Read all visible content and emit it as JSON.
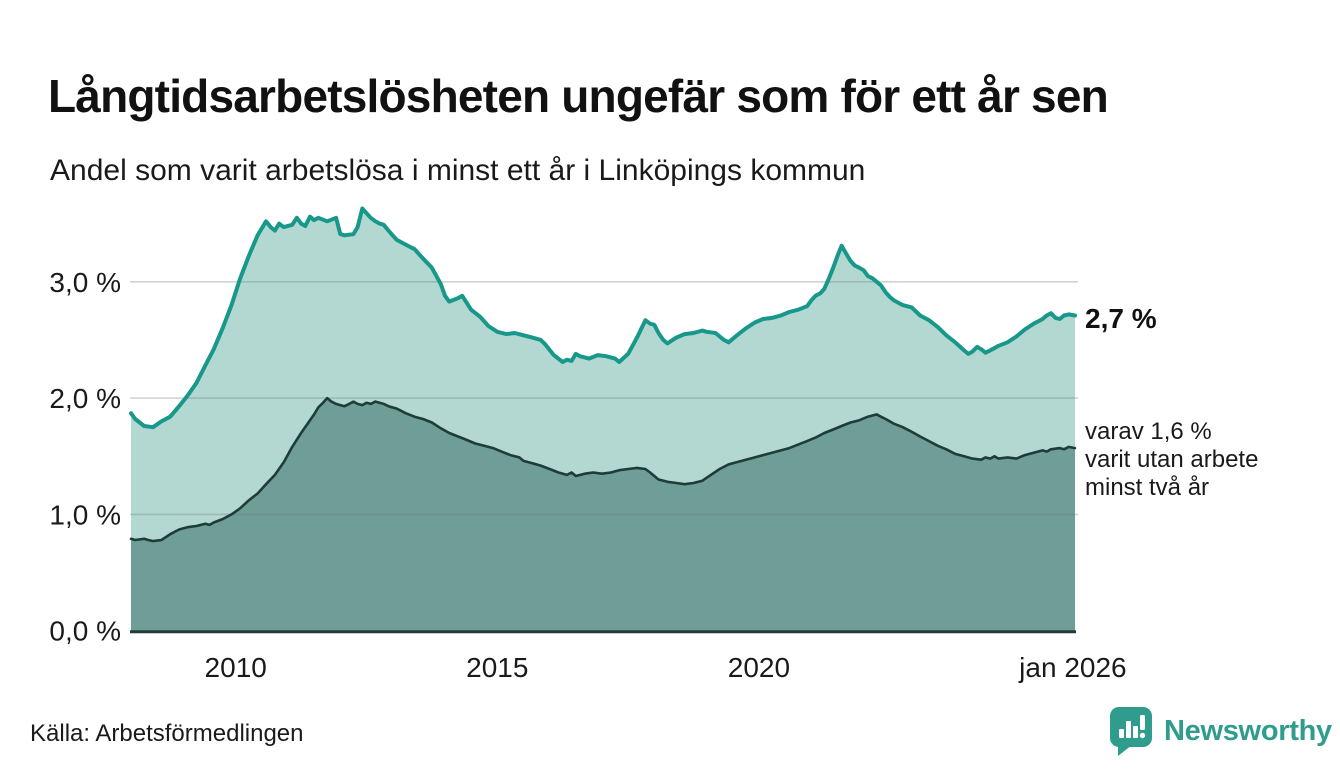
{
  "header": {
    "title": "Långtidsarbetslösheten ungefär som för ett år sen",
    "subtitle": "Andel som varit arbetslösa i minst ett år i Linköpings kommun"
  },
  "footer": {
    "source": "Källa: Arbetsförmedlingen",
    "logo_text": "Newsworthy"
  },
  "colors": {
    "total_line": "#17988a",
    "total_fill": "#b3d8d2",
    "two_year_line": "#1e3d38",
    "two_year_fill": "#6f9e98",
    "grid_overlay": "rgba(100,115,112,0.30)",
    "axis_line": "#1e3d38",
    "logo_teal": "#2f9c8d",
    "text": "#1a1a1a"
  },
  "chart_data": {
    "type": "area",
    "title": "Långtidsarbetslösheten ungefär som för ett år sen",
    "subtitle": "Andel som varit arbetslösa i minst ett år i Linköpings kommun",
    "x_axis": {
      "range": [
        2008.0,
        2026.04
      ],
      "ticks": [
        {
          "year": 2010,
          "label": "2010"
        },
        {
          "year": 2015,
          "label": "2015"
        },
        {
          "year": 2020,
          "label": "2020"
        },
        {
          "year": 2026.0,
          "label": "jan 2026"
        }
      ]
    },
    "y_axis": {
      "unit": "%",
      "range": [
        0,
        3.8
      ],
      "grid": true,
      "ticks": [
        {
          "value": 3.0,
          "label": "3,0 %"
        },
        {
          "value": 2.0,
          "label": "2,0 %"
        },
        {
          "value": 1.0,
          "label": "1,0 %"
        },
        {
          "value": 0.0,
          "label": "0,0 %"
        }
      ]
    },
    "annotations": {
      "end_value_total": "2,7 %",
      "end_sub_lines": [
        "varav 1,6 %",
        "varit utan arbete",
        "minst två år"
      ]
    },
    "series": [
      {
        "id": "arbetslosa-minst-ett-ar",
        "end_value": 2.7,
        "points": [
          [
            2008.0,
            1.87
          ],
          [
            2008.08,
            1.82
          ],
          [
            2008.25,
            1.76
          ],
          [
            2008.42,
            1.75
          ],
          [
            2008.58,
            1.8
          ],
          [
            2008.75,
            1.84
          ],
          [
            2008.92,
            1.93
          ],
          [
            2009.08,
            2.02
          ],
          [
            2009.25,
            2.13
          ],
          [
            2009.42,
            2.28
          ],
          [
            2009.58,
            2.42
          ],
          [
            2009.75,
            2.6
          ],
          [
            2009.92,
            2.8
          ],
          [
            2010.08,
            3.02
          ],
          [
            2010.25,
            3.22
          ],
          [
            2010.42,
            3.4
          ],
          [
            2010.58,
            3.52
          ],
          [
            2010.67,
            3.47
          ],
          [
            2010.75,
            3.44
          ],
          [
            2010.83,
            3.5
          ],
          [
            2010.92,
            3.47
          ],
          [
            2011.08,
            3.49
          ],
          [
            2011.17,
            3.55
          ],
          [
            2011.25,
            3.5
          ],
          [
            2011.33,
            3.48
          ],
          [
            2011.42,
            3.56
          ],
          [
            2011.5,
            3.53
          ],
          [
            2011.58,
            3.55
          ],
          [
            2011.75,
            3.52
          ],
          [
            2011.92,
            3.55
          ],
          [
            2012.0,
            3.41
          ],
          [
            2012.08,
            3.4
          ],
          [
            2012.25,
            3.41
          ],
          [
            2012.33,
            3.47
          ],
          [
            2012.42,
            3.63
          ],
          [
            2012.5,
            3.59
          ],
          [
            2012.58,
            3.55
          ],
          [
            2012.67,
            3.52
          ],
          [
            2012.75,
            3.5
          ],
          [
            2012.83,
            3.49
          ],
          [
            2012.92,
            3.44
          ],
          [
            2013.0,
            3.4
          ],
          [
            2013.08,
            3.36
          ],
          [
            2013.25,
            3.32
          ],
          [
            2013.42,
            3.28
          ],
          [
            2013.58,
            3.2
          ],
          [
            2013.75,
            3.12
          ],
          [
            2013.92,
            2.98
          ],
          [
            2014.0,
            2.88
          ],
          [
            2014.08,
            2.83
          ],
          [
            2014.25,
            2.86
          ],
          [
            2014.33,
            2.88
          ],
          [
            2014.5,
            2.76
          ],
          [
            2014.67,
            2.7
          ],
          [
            2014.83,
            2.62
          ],
          [
            2015.0,
            2.57
          ],
          [
            2015.17,
            2.55
          ],
          [
            2015.33,
            2.56
          ],
          [
            2015.5,
            2.54
          ],
          [
            2015.67,
            2.52
          ],
          [
            2015.83,
            2.5
          ],
          [
            2015.92,
            2.46
          ],
          [
            2016.08,
            2.37
          ],
          [
            2016.25,
            2.31
          ],
          [
            2016.33,
            2.33
          ],
          [
            2016.42,
            2.32
          ],
          [
            2016.5,
            2.38
          ],
          [
            2016.58,
            2.36
          ],
          [
            2016.75,
            2.34
          ],
          [
            2016.92,
            2.37
          ],
          [
            2017.08,
            2.36
          ],
          [
            2017.25,
            2.34
          ],
          [
            2017.33,
            2.31
          ],
          [
            2017.5,
            2.38
          ],
          [
            2017.67,
            2.52
          ],
          [
            2017.83,
            2.67
          ],
          [
            2017.92,
            2.64
          ],
          [
            2018.0,
            2.63
          ],
          [
            2018.08,
            2.56
          ],
          [
            2018.17,
            2.5
          ],
          [
            2018.25,
            2.47
          ],
          [
            2018.42,
            2.52
          ],
          [
            2018.58,
            2.55
          ],
          [
            2018.75,
            2.56
          ],
          [
            2018.92,
            2.58
          ],
          [
            2019.0,
            2.57
          ],
          [
            2019.17,
            2.56
          ],
          [
            2019.33,
            2.5
          ],
          [
            2019.42,
            2.48
          ],
          [
            2019.58,
            2.54
          ],
          [
            2019.75,
            2.6
          ],
          [
            2019.92,
            2.65
          ],
          [
            2020.08,
            2.68
          ],
          [
            2020.25,
            2.69
          ],
          [
            2020.42,
            2.71
          ],
          [
            2020.58,
            2.74
          ],
          [
            2020.75,
            2.76
          ],
          [
            2020.92,
            2.79
          ],
          [
            2021.0,
            2.84
          ],
          [
            2021.08,
            2.88
          ],
          [
            2021.17,
            2.9
          ],
          [
            2021.25,
            2.94
          ],
          [
            2021.33,
            3.02
          ],
          [
            2021.42,
            3.12
          ],
          [
            2021.5,
            3.22
          ],
          [
            2021.58,
            3.31
          ],
          [
            2021.67,
            3.24
          ],
          [
            2021.75,
            3.18
          ],
          [
            2021.83,
            3.14
          ],
          [
            2021.92,
            3.12
          ],
          [
            2022.0,
            3.1
          ],
          [
            2022.08,
            3.05
          ],
          [
            2022.17,
            3.03
          ],
          [
            2022.33,
            2.97
          ],
          [
            2022.42,
            2.91
          ],
          [
            2022.5,
            2.87
          ],
          [
            2022.58,
            2.84
          ],
          [
            2022.75,
            2.8
          ],
          [
            2022.92,
            2.78
          ],
          [
            2023.08,
            2.71
          ],
          [
            2023.25,
            2.67
          ],
          [
            2023.42,
            2.61
          ],
          [
            2023.58,
            2.54
          ],
          [
            2023.75,
            2.48
          ],
          [
            2023.92,
            2.41
          ],
          [
            2024.0,
            2.38
          ],
          [
            2024.08,
            2.4
          ],
          [
            2024.17,
            2.44
          ],
          [
            2024.25,
            2.42
          ],
          [
            2024.33,
            2.39
          ],
          [
            2024.42,
            2.41
          ],
          [
            2024.5,
            2.43
          ],
          [
            2024.58,
            2.45
          ],
          [
            2024.75,
            2.48
          ],
          [
            2024.92,
            2.53
          ],
          [
            2025.08,
            2.59
          ],
          [
            2025.25,
            2.64
          ],
          [
            2025.42,
            2.68
          ],
          [
            2025.5,
            2.71
          ],
          [
            2025.58,
            2.73
          ],
          [
            2025.67,
            2.69
          ],
          [
            2025.75,
            2.68
          ],
          [
            2025.83,
            2.71
          ],
          [
            2025.92,
            2.72
          ],
          [
            2026.04,
            2.71
          ]
        ]
      },
      {
        "id": "arbetslosa-minst-tva-ar",
        "end_value": 1.6,
        "points": [
          [
            2008.0,
            0.79
          ],
          [
            2008.08,
            0.78
          ],
          [
            2008.25,
            0.79
          ],
          [
            2008.33,
            0.78
          ],
          [
            2008.42,
            0.77
          ],
          [
            2008.58,
            0.78
          ],
          [
            2008.75,
            0.83
          ],
          [
            2008.92,
            0.87
          ],
          [
            2009.08,
            0.89
          ],
          [
            2009.25,
            0.9
          ],
          [
            2009.42,
            0.92
          ],
          [
            2009.5,
            0.91
          ],
          [
            2009.58,
            0.93
          ],
          [
            2009.75,
            0.96
          ],
          [
            2009.92,
            1.0
          ],
          [
            2010.08,
            1.05
          ],
          [
            2010.25,
            1.12
          ],
          [
            2010.42,
            1.18
          ],
          [
            2010.58,
            1.26
          ],
          [
            2010.75,
            1.34
          ],
          [
            2010.92,
            1.45
          ],
          [
            2011.08,
            1.58
          ],
          [
            2011.25,
            1.7
          ],
          [
            2011.42,
            1.81
          ],
          [
            2011.5,
            1.86
          ],
          [
            2011.58,
            1.92
          ],
          [
            2011.67,
            1.96
          ],
          [
            2011.75,
            2.0
          ],
          [
            2011.83,
            1.97
          ],
          [
            2011.92,
            1.95
          ],
          [
            2012.0,
            1.94
          ],
          [
            2012.08,
            1.93
          ],
          [
            2012.17,
            1.95
          ],
          [
            2012.25,
            1.97
          ],
          [
            2012.33,
            1.95
          ],
          [
            2012.42,
            1.94
          ],
          [
            2012.5,
            1.96
          ],
          [
            2012.58,
            1.95
          ],
          [
            2012.67,
            1.97
          ],
          [
            2012.75,
            1.96
          ],
          [
            2012.83,
            1.95
          ],
          [
            2012.92,
            1.93
          ],
          [
            2013.08,
            1.91
          ],
          [
            2013.25,
            1.87
          ],
          [
            2013.42,
            1.84
          ],
          [
            2013.58,
            1.82
          ],
          [
            2013.75,
            1.79
          ],
          [
            2013.92,
            1.74
          ],
          [
            2014.08,
            1.7
          ],
          [
            2014.25,
            1.67
          ],
          [
            2014.42,
            1.64
          ],
          [
            2014.58,
            1.61
          ],
          [
            2014.75,
            1.59
          ],
          [
            2014.92,
            1.57
          ],
          [
            2015.08,
            1.54
          ],
          [
            2015.25,
            1.51
          ],
          [
            2015.42,
            1.49
          ],
          [
            2015.5,
            1.46
          ],
          [
            2015.67,
            1.44
          ],
          [
            2015.83,
            1.42
          ],
          [
            2016.0,
            1.39
          ],
          [
            2016.17,
            1.36
          ],
          [
            2016.33,
            1.34
          ],
          [
            2016.42,
            1.36
          ],
          [
            2016.5,
            1.33
          ],
          [
            2016.67,
            1.35
          ],
          [
            2016.83,
            1.36
          ],
          [
            2017.0,
            1.35
          ],
          [
            2017.17,
            1.36
          ],
          [
            2017.33,
            1.38
          ],
          [
            2017.5,
            1.39
          ],
          [
            2017.67,
            1.4
          ],
          [
            2017.83,
            1.39
          ],
          [
            2017.92,
            1.36
          ],
          [
            2018.08,
            1.3
          ],
          [
            2018.25,
            1.28
          ],
          [
            2018.42,
            1.27
          ],
          [
            2018.58,
            1.26
          ],
          [
            2018.75,
            1.27
          ],
          [
            2018.92,
            1.29
          ],
          [
            2019.08,
            1.34
          ],
          [
            2019.25,
            1.39
          ],
          [
            2019.42,
            1.43
          ],
          [
            2019.58,
            1.45
          ],
          [
            2019.75,
            1.47
          ],
          [
            2019.92,
            1.49
          ],
          [
            2020.08,
            1.51
          ],
          [
            2020.25,
            1.53
          ],
          [
            2020.42,
            1.55
          ],
          [
            2020.58,
            1.57
          ],
          [
            2020.75,
            1.6
          ],
          [
            2020.92,
            1.63
          ],
          [
            2021.08,
            1.66
          ],
          [
            2021.25,
            1.7
          ],
          [
            2021.42,
            1.73
          ],
          [
            2021.58,
            1.76
          ],
          [
            2021.75,
            1.79
          ],
          [
            2021.92,
            1.81
          ],
          [
            2022.08,
            1.84
          ],
          [
            2022.17,
            1.85
          ],
          [
            2022.25,
            1.86
          ],
          [
            2022.33,
            1.84
          ],
          [
            2022.42,
            1.82
          ],
          [
            2022.58,
            1.78
          ],
          [
            2022.75,
            1.75
          ],
          [
            2022.92,
            1.71
          ],
          [
            2023.08,
            1.67
          ],
          [
            2023.25,
            1.63
          ],
          [
            2023.42,
            1.59
          ],
          [
            2023.58,
            1.56
          ],
          [
            2023.75,
            1.52
          ],
          [
            2023.92,
            1.5
          ],
          [
            2024.08,
            1.48
          ],
          [
            2024.25,
            1.47
          ],
          [
            2024.33,
            1.49
          ],
          [
            2024.42,
            1.48
          ],
          [
            2024.5,
            1.5
          ],
          [
            2024.58,
            1.48
          ],
          [
            2024.75,
            1.49
          ],
          [
            2024.92,
            1.48
          ],
          [
            2025.08,
            1.51
          ],
          [
            2025.25,
            1.53
          ],
          [
            2025.42,
            1.55
          ],
          [
            2025.5,
            1.54
          ],
          [
            2025.58,
            1.56
          ],
          [
            2025.75,
            1.57
          ],
          [
            2025.83,
            1.56
          ],
          [
            2025.92,
            1.58
          ],
          [
            2026.04,
            1.57
          ]
        ]
      }
    ]
  }
}
